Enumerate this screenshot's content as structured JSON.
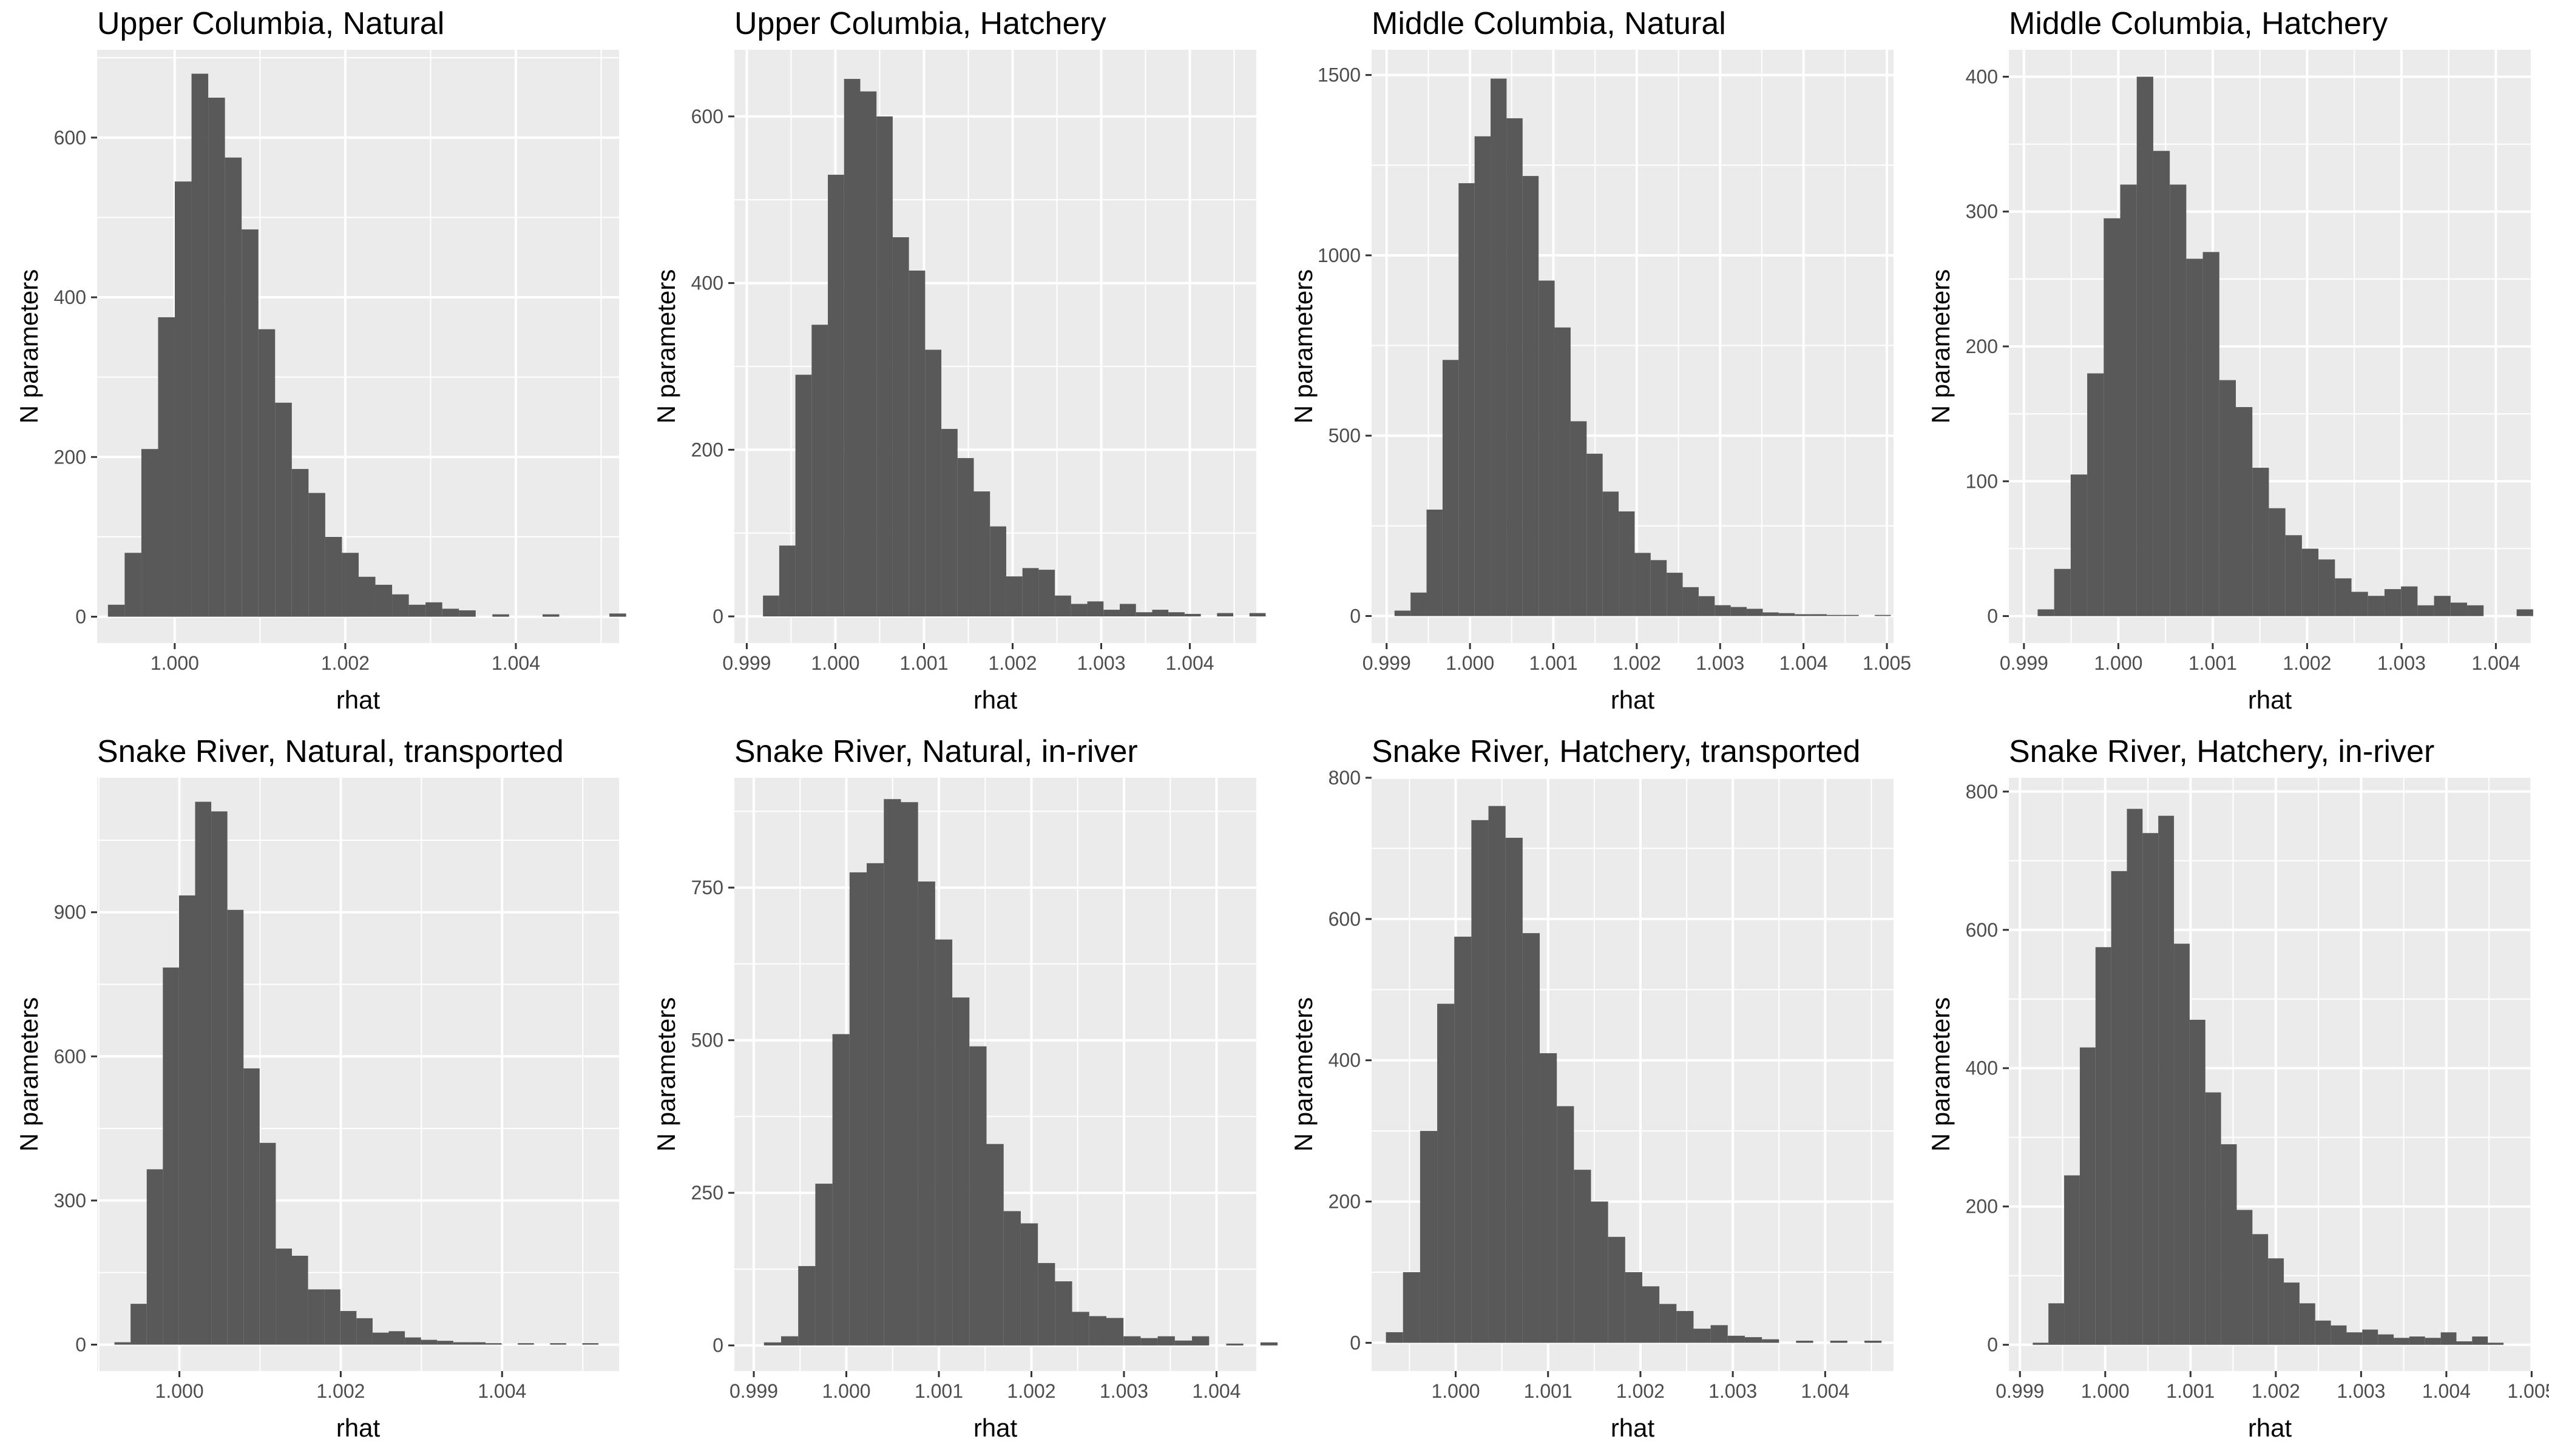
{
  "chart_data": [
    {
      "type": "bar",
      "title": "Upper Columbia, Natural",
      "xlabel": "rhat",
      "ylabel": "N parameters",
      "xlim": [
        0.99909,
        1.00521
      ],
      "ylim": [
        -33,
        710
      ],
      "xticks": [
        1.0,
        1.002,
        1.004
      ],
      "xtick_labels": [
        "1.000",
        "1.002",
        "1.004"
      ],
      "yticks": [
        0,
        200,
        400,
        600
      ],
      "xstart": 0.999217,
      "binwidth": 0.000196,
      "values": [
        15,
        80,
        210,
        375,
        545,
        680,
        650,
        575,
        485,
        360,
        268,
        185,
        155,
        100,
        80,
        50,
        40,
        28,
        15,
        18,
        10,
        8,
        0,
        3,
        0,
        0,
        3,
        0,
        0,
        0,
        4
      ]
    },
    {
      "type": "bar",
      "title": "Upper Columbia, Hatchery",
      "xlabel": "rhat",
      "ylabel": "N parameters",
      "xlim": [
        0.99886,
        1.00475
      ],
      "ylim": [
        -32,
        680
      ],
      "xticks": [
        0.999,
        1.0,
        1.001,
        1.002,
        1.003,
        1.004
      ],
      "xtick_labels": [
        "0.999",
        "1.000",
        "1.001",
        "1.002",
        "1.003",
        "1.004"
      ],
      "yticks": [
        0,
        200,
        400,
        600
      ],
      "xstart": 0.999183,
      "binwidth": 0.000183,
      "values": [
        25,
        85,
        290,
        350,
        530,
        645,
        630,
        600,
        455,
        415,
        320,
        225,
        190,
        150,
        108,
        48,
        58,
        56,
        25,
        15,
        18,
        8,
        15,
        5,
        8,
        5,
        3,
        0,
        4,
        0,
        4
      ]
    },
    {
      "type": "bar",
      "title": "Middle Columbia, Natural",
      "xlabel": "rhat",
      "ylabel": "N parameters",
      "xlim": [
        0.99882,
        1.00508
      ],
      "ylim": [
        -75,
        1570
      ],
      "xticks": [
        0.999,
        1.0,
        1.001,
        1.002,
        1.003,
        1.004,
        1.005
      ],
      "xtick_labels": [
        "0.999",
        "1.000",
        "1.001",
        "1.002",
        "1.003",
        "1.004",
        "1.005"
      ],
      "yticks": [
        0,
        500,
        1000,
        1500
      ],
      "xstart": 0.999095,
      "binwidth": 0.000192,
      "values": [
        15,
        65,
        295,
        710,
        1200,
        1330,
        1490,
        1380,
        1220,
        930,
        800,
        540,
        450,
        345,
        290,
        175,
        155,
        120,
        80,
        55,
        30,
        25,
        20,
        10,
        8,
        5,
        5,
        3,
        3,
        0,
        3
      ]
    },
    {
      "type": "bar",
      "title": "Middle Columbia, Hatchery",
      "xlabel": "rhat",
      "ylabel": "N parameters",
      "xlim": [
        0.99884,
        1.00437
      ],
      "ylim": [
        -20,
        420
      ],
      "xticks": [
        0.999,
        1.0,
        1.001,
        1.002,
        1.003,
        1.004
      ],
      "xtick_labels": [
        "0.999",
        "1.000",
        "1.001",
        "1.002",
        "1.003",
        "1.004"
      ],
      "yticks": [
        0,
        100,
        200,
        300,
        400
      ],
      "xstart": 0.999145,
      "binwidth": 0.000175,
      "values": [
        5,
        35,
        105,
        180,
        295,
        320,
        400,
        345,
        320,
        265,
        270,
        175,
        155,
        110,
        80,
        60,
        50,
        42,
        28,
        18,
        15,
        20,
        22,
        8,
        15,
        10,
        8,
        0,
        0,
        5,
        0,
        8
      ]
    },
    {
      "type": "bar",
      "title": "Snake River, Natural, transported",
      "xlabel": "rhat",
      "ylabel": "N parameters",
      "xlim": [
        0.99898,
        1.00545
      ],
      "ylim": [
        -55,
        1180
      ],
      "xticks": [
        1.0,
        1.002,
        1.004
      ],
      "xtick_labels": [
        "1.000",
        "1.002",
        "1.004"
      ],
      "yticks": [
        0,
        300,
        600,
        900
      ],
      "xstart": 0.999195,
      "binwidth": 0.0002,
      "values": [
        5,
        85,
        365,
        785,
        935,
        1130,
        1110,
        905,
        575,
        420,
        200,
        185,
        115,
        115,
        70,
        55,
        25,
        28,
        15,
        10,
        8,
        5,
        5,
        3,
        0,
        3,
        0,
        3,
        0,
        3
      ]
    },
    {
      "type": "bar",
      "title": "Snake River, Natural, in-river",
      "xlabel": "rhat",
      "ylabel": "N parameters",
      "xlim": [
        0.99879,
        1.00443
      ],
      "ylim": [
        -42,
        930
      ],
      "xticks": [
        0.999,
        1.0,
        1.001,
        1.002,
        1.003,
        1.004
      ],
      "xtick_labels": [
        "0.999",
        "1.000",
        "1.001",
        "1.002",
        "1.003",
        "1.004"
      ],
      "yticks": [
        0,
        250,
        500,
        750
      ],
      "xstart": 0.99911,
      "binwidth": 0.000185,
      "values": [
        5,
        15,
        130,
        265,
        510,
        775,
        790,
        895,
        890,
        760,
        665,
        570,
        490,
        330,
        220,
        200,
        135,
        105,
        55,
        48,
        45,
        15,
        12,
        15,
        8,
        15,
        0,
        3,
        0,
        5
      ]
    },
    {
      "type": "bar",
      "title": "Snake River, Hatchery, transported",
      "xlabel": "rhat",
      "ylabel": "N parameters",
      "xlim": [
        0.99909,
        1.00474
      ],
      "ylim": [
        -40,
        800
      ],
      "xticks": [
        1.0,
        1.001,
        1.002,
        1.003,
        1.004
      ],
      "xtick_labels": [
        "1.000",
        "1.001",
        "1.002",
        "1.003",
        "1.004"
      ],
      "yticks": [
        0,
        200,
        400,
        600,
        800
      ],
      "xstart": 0.999245,
      "binwidth": 0.000185,
      "values": [
        15,
        100,
        300,
        480,
        575,
        740,
        760,
        715,
        580,
        410,
        335,
        245,
        200,
        150,
        100,
        80,
        55,
        45,
        20,
        25,
        10,
        8,
        5,
        0,
        3,
        0,
        3,
        0,
        3
      ]
    },
    {
      "type": "bar",
      "title": "Snake River, Hatchery, in-river",
      "xlabel": "rhat",
      "ylabel": "N parameters",
      "xlim": [
        0.99887,
        1.00499
      ],
      "ylim": [
        -38,
        820
      ],
      "xticks": [
        0.999,
        1.0,
        1.001,
        1.002,
        1.003,
        1.004,
        1.005
      ],
      "xtick_labels": [
        "0.999",
        "1.000",
        "1.001",
        "1.002",
        "1.003",
        "1.004",
        "1.005"
      ],
      "yticks": [
        0,
        200,
        400,
        600,
        800
      ],
      "xstart": 0.99915,
      "binwidth": 0.000184,
      "values": [
        3,
        60,
        245,
        430,
        575,
        685,
        775,
        740,
        765,
        580,
        470,
        365,
        290,
        195,
        160,
        125,
        90,
        60,
        35,
        28,
        18,
        22,
        15,
        10,
        12,
        10,
        18,
        5,
        12,
        3
      ]
    }
  ]
}
